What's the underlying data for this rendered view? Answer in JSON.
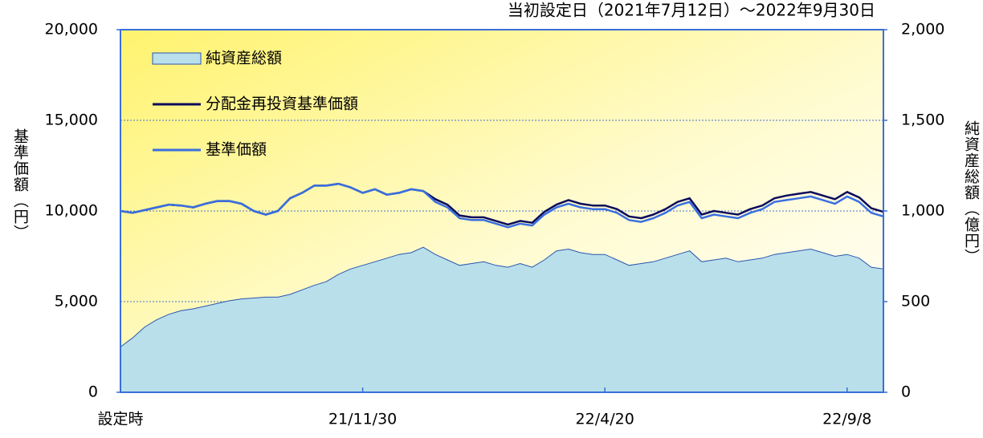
{
  "chart_data": {
    "type": "line",
    "title": "当初設定日（2021年7月12日）～2022年9月30日",
    "y_label": "基準価額（円）",
    "y2_label": "純資産総額（億円）",
    "categories": [
      "設定時",
      null,
      null,
      null,
      null,
      null,
      null,
      null,
      null,
      null,
      null,
      null,
      null,
      null,
      null,
      null,
      null,
      null,
      null,
      null,
      "21/11/30",
      null,
      null,
      null,
      null,
      null,
      null,
      null,
      null,
      null,
      null,
      null,
      null,
      null,
      null,
      null,
      null,
      null,
      null,
      null,
      "22/4/20",
      null,
      null,
      null,
      null,
      null,
      null,
      null,
      null,
      null,
      null,
      null,
      null,
      null,
      null,
      null,
      null,
      null,
      null,
      null,
      "22/9/8",
      null,
      null,
      null
    ],
    "series": [
      {
        "name": "純資産総額",
        "kind": "area",
        "axis": "y2",
        "color": "#b9dfea",
        "line_color": "#2a56b0",
        "values": [
          250,
          300,
          360,
          400,
          430,
          450,
          460,
          475,
          490,
          505,
          515,
          520,
          525,
          525,
          540,
          565,
          590,
          610,
          650,
          680,
          700,
          720,
          740,
          760,
          770,
          800,
          760,
          730,
          700,
          710,
          720,
          700,
          690,
          710,
          690,
          730,
          780,
          790,
          770,
          760,
          760,
          730,
          700,
          710,
          720,
          740,
          760,
          780,
          720,
          730,
          740,
          720,
          730,
          740,
          760,
          770,
          780,
          790,
          770,
          750,
          760,
          740,
          690,
          680
        ]
      },
      {
        "name": "分配金再投資基準価額",
        "kind": "line",
        "axis": "y",
        "color": "#0b0b5c",
        "values": [
          10000,
          9900,
          10050,
          10200,
          10350,
          10300,
          10200,
          10400,
          10550,
          10550,
          10400,
          10000,
          9800,
          10000,
          10700,
          11000,
          11400,
          11400,
          11500,
          11300,
          11000,
          11200,
          10900,
          11000,
          11200,
          11100,
          10650,
          10350,
          9750,
          9650,
          9650,
          9450,
          9250,
          9450,
          9350,
          9950,
          10350,
          10600,
          10400,
          10300,
          10300,
          10100,
          9700,
          9600,
          9800,
          10100,
          10500,
          10700,
          9800,
          10000,
          9900,
          9800,
          10100,
          10300,
          10700,
          10850,
          10950,
          11050,
          10850,
          10650,
          11050,
          10750,
          10150,
          9950
        ]
      },
      {
        "name": "基準価額",
        "kind": "line",
        "axis": "y",
        "color": "#3a6fe0",
        "values": [
          10000,
          9900,
          10050,
          10200,
          10350,
          10300,
          10200,
          10400,
          10550,
          10550,
          10400,
          10000,
          9800,
          10000,
          10700,
          11000,
          11400,
          11400,
          11500,
          11300,
          11000,
          11200,
          10900,
          11000,
          11200,
          11100,
          10500,
          10200,
          9600,
          9500,
          9500,
          9300,
          9100,
          9300,
          9200,
          9800,
          10200,
          10400,
          10200,
          10100,
          10100,
          9900,
          9500,
          9400,
          9600,
          9900,
          10300,
          10500,
          9600,
          9800,
          9700,
          9600,
          9900,
          10100,
          10500,
          10600,
          10700,
          10800,
          10600,
          10400,
          10800,
          10500,
          9900,
          9700
        ]
      }
    ],
    "ylim": [
      0,
      20000
    ],
    "yticks": [
      0,
      {
        "value": 5000,
        "label": "5,000"
      },
      {
        "value": 10000,
        "label": "10,000"
      },
      {
        "value": 15000,
        "label": "15,000"
      },
      {
        "value": 20000,
        "label": "20,000"
      }
    ],
    "y2lim": [
      0,
      2000
    ],
    "y2ticks": [
      0,
      500,
      {
        "value": 1000,
        "label": "1,000"
      },
      {
        "value": 1500,
        "label": "1,500"
      },
      {
        "value": 2000,
        "label": "2,000"
      }
    ],
    "grid": true,
    "legend": "upper left"
  }
}
